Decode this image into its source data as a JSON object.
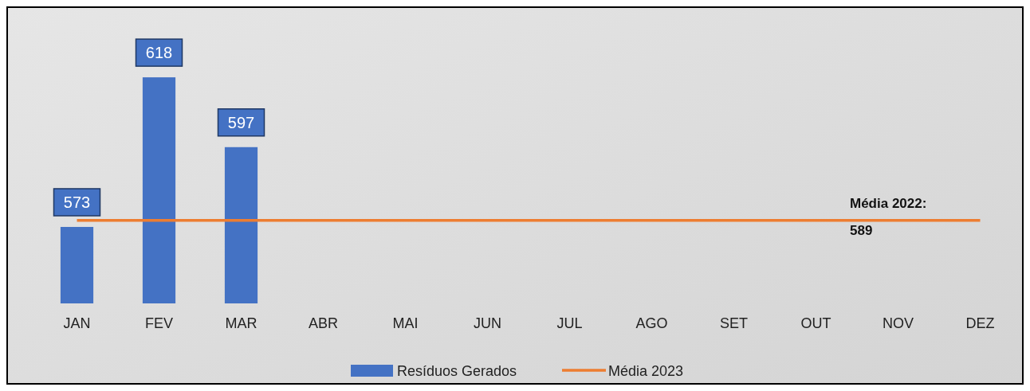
{
  "chart_data": {
    "type": "bar",
    "categories": [
      "JAN",
      "FEV",
      "MAR",
      "ABR",
      "MAI",
      "JUN",
      "JUL",
      "AGO",
      "SET",
      "OUT",
      "NOV",
      "DEZ"
    ],
    "series": [
      {
        "name": "Resíduos Gerados",
        "color": "#4472c4",
        "values": [
          573,
          618,
          597,
          null,
          null,
          null,
          null,
          null,
          null,
          null,
          null,
          null
        ],
        "value_labels": [
          "573",
          "618",
          "597",
          null,
          null,
          null,
          null,
          null,
          null,
          null,
          null,
          null
        ]
      },
      {
        "name": "Média 2023",
        "type": "line",
        "color": "#ed7d31",
        "values": [
          575,
          575,
          575,
          575,
          575,
          575,
          575,
          575,
          575,
          575,
          575,
          575
        ]
      }
    ],
    "ylim": [
      550,
      630
    ],
    "tick_labels": "x",
    "legend": "bottom",
    "marker": "none",
    "annotations": [
      "Média 2022: 589"
    ]
  }
}
